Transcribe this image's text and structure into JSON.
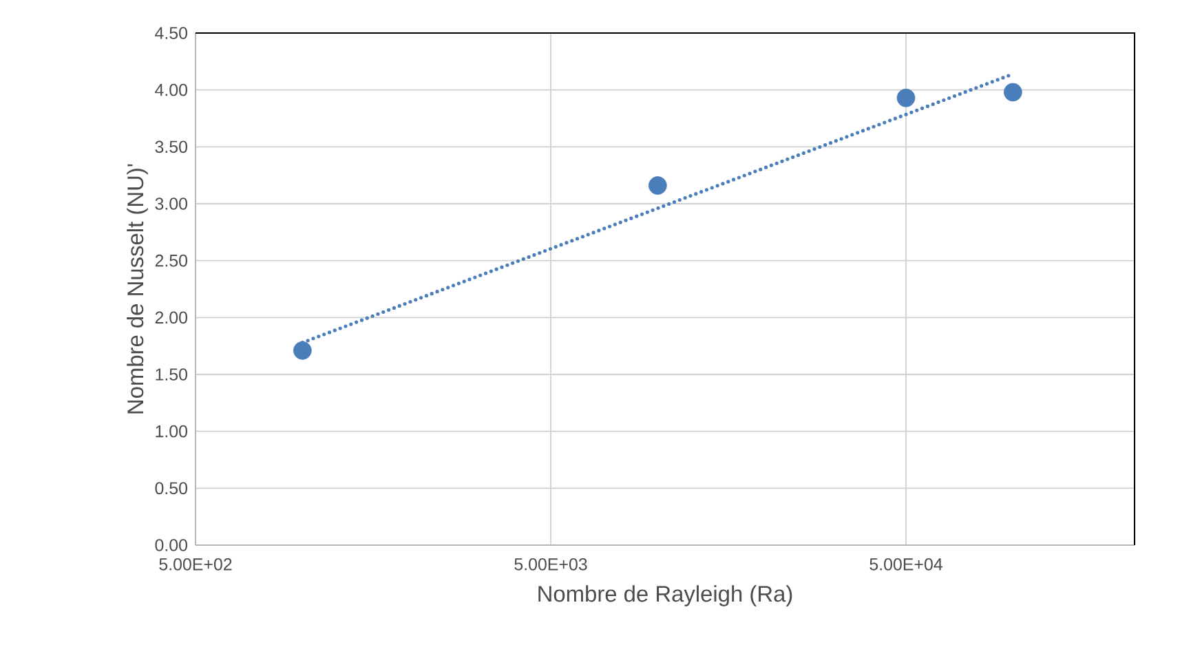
{
  "chart_data": {
    "type": "scatter",
    "xlabel": "Nombre de Rayleigh (Ra)",
    "ylabel": "Nombre de Nusselt (NU)'",
    "series": [
      {
        "color": "#4a7ebb",
        "x": [
          1000,
          10000,
          50000,
          100000
        ],
        "values": [
          1.71,
          3.16,
          3.93,
          3.98
        ],
        "marker": "circle"
      },
      {
        "type": "line",
        "color": "#4a7ebb",
        "x": [
          1000,
          100000
        ],
        "values": [
          1.78,
          4.14
        ],
        "line_style": "dotted",
        "marker": "none"
      }
    ],
    "log": "x",
    "xlim": [
      500,
      220000
    ],
    "xticks": [
      {
        "value": 500,
        "label": "5.00E+02"
      },
      {
        "value": 5000,
        "label": "5.00E+03"
      },
      {
        "value": 50000,
        "label": "5.00E+04"
      }
    ],
    "ylim": [
      0,
      4.5
    ],
    "yticks": [
      {
        "value": 0,
        "label": "0.00"
      },
      {
        "value": 0.5,
        "label": "0.50"
      },
      {
        "value": 1,
        "label": "1.00"
      },
      {
        "value": 1.5,
        "label": "1.50"
      },
      {
        "value": 2,
        "label": "2.00"
      },
      {
        "value": 2.5,
        "label": "2.50"
      },
      {
        "value": 3,
        "label": "3.00"
      },
      {
        "value": 3.5,
        "label": "3.50"
      },
      {
        "value": 4,
        "label": "4.00"
      },
      {
        "value": 4.5,
        "label": "4.50"
      }
    ],
    "grid": true
  }
}
